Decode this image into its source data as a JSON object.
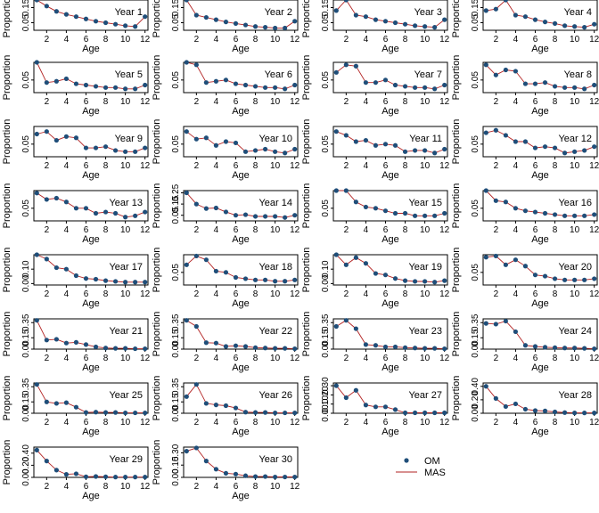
{
  "chart_data": {
    "type": "line",
    "layout": "small-multiples",
    "xlabel": "Age",
    "ylabel": "Proportion",
    "xticks": [
      2,
      4,
      6,
      8,
      10,
      12
    ],
    "xlim": [
      0.7,
      12.3
    ],
    "legend": {
      "placement": "bottom-right",
      "entries": [
        {
          "label": "OM",
          "style": "points",
          "color": "#1f4e79"
        },
        {
          "label": "MAS",
          "style": "line",
          "color": "#b22222"
        }
      ]
    },
    "colors": {
      "points": "#1f4e79",
      "line": "#b22222"
    },
    "panels": [
      {
        "title": "Year 1",
        "yticks": [
          0.05,
          0.15
        ],
        "ylim": [
          0.0,
          0.2
        ],
        "om": [
          0.2,
          0.16,
          0.125,
          0.105,
          0.09,
          0.075,
          0.06,
          0.05,
          0.04,
          0.03,
          0.025,
          0.09
        ],
        "mas": [
          0.2,
          0.16,
          0.125,
          0.105,
          0.09,
          0.075,
          0.06,
          0.05,
          0.04,
          0.03,
          0.025,
          0.09
        ]
      },
      {
        "title": "Year 2",
        "yticks": [
          0.05,
          0.15
        ],
        "ylim": [
          0.0,
          0.2
        ],
        "om": [
          0.2,
          0.1,
          0.085,
          0.07,
          0.055,
          0.045,
          0.035,
          0.025,
          0.02,
          0.015,
          0.015,
          0.06
        ],
        "mas": [
          0.2,
          0.1,
          0.085,
          0.07,
          0.055,
          0.045,
          0.035,
          0.025,
          0.02,
          0.015,
          0.015,
          0.06
        ]
      },
      {
        "title": "Year 3",
        "yticks": [
          0.05,
          0.15
        ],
        "ylim": [
          0.0,
          0.2
        ],
        "om": [
          0.13,
          0.2,
          0.1,
          0.09,
          0.07,
          0.06,
          0.05,
          0.04,
          0.03,
          0.025,
          0.02,
          0.07
        ],
        "mas": [
          0.13,
          0.2,
          0.1,
          0.09,
          0.07,
          0.06,
          0.05,
          0.04,
          0.03,
          0.025,
          0.02,
          0.07
        ]
      },
      {
        "title": "Year 4",
        "yticks": [
          0.05,
          0.15
        ],
        "ylim": [
          0.0,
          0.2
        ],
        "om": [
          0.13,
          0.14,
          0.2,
          0.1,
          0.09,
          0.07,
          0.055,
          0.045,
          0.03,
          0.025,
          0.02,
          0.04
        ],
        "mas": [
          0.13,
          0.14,
          0.2,
          0.1,
          0.09,
          0.07,
          0.055,
          0.045,
          0.03,
          0.025,
          0.02,
          0.04
        ]
      },
      {
        "title": "Year 5",
        "yticks": [
          0.05
        ],
        "ylim": [
          0.0,
          0.12
        ],
        "om": [
          0.12,
          0.04,
          0.045,
          0.055,
          0.035,
          0.03,
          0.025,
          0.02,
          0.02,
          0.015,
          0.015,
          0.03
        ],
        "mas": [
          0.12,
          0.04,
          0.045,
          0.055,
          0.035,
          0.03,
          0.025,
          0.02,
          0.02,
          0.015,
          0.015,
          0.03
        ]
      },
      {
        "title": "Year 6",
        "yticks": [
          0.05
        ],
        "ylim": [
          0.0,
          0.12
        ],
        "om": [
          0.12,
          0.11,
          0.04,
          0.045,
          0.05,
          0.035,
          0.03,
          0.025,
          0.02,
          0.02,
          0.015,
          0.03
        ],
        "mas": [
          0.12,
          0.11,
          0.04,
          0.045,
          0.05,
          0.035,
          0.03,
          0.025,
          0.02,
          0.02,
          0.015,
          0.03
        ]
      },
      {
        "title": "Year 7",
        "yticks": [
          0.05
        ],
        "ylim": [
          0.0,
          0.12
        ],
        "om": [
          0.08,
          0.11,
          0.105,
          0.04,
          0.04,
          0.05,
          0.03,
          0.025,
          0.02,
          0.02,
          0.015,
          0.03
        ],
        "mas": [
          0.08,
          0.11,
          0.105,
          0.04,
          0.04,
          0.05,
          0.03,
          0.025,
          0.02,
          0.02,
          0.015,
          0.03
        ]
      },
      {
        "title": "Year 8",
        "yticks": [
          0.05
        ],
        "ylim": [
          0.0,
          0.12
        ],
        "om": [
          0.11,
          0.07,
          0.09,
          0.085,
          0.035,
          0.035,
          0.04,
          0.025,
          0.02,
          0.02,
          0.015,
          0.03
        ],
        "mas": [
          0.11,
          0.07,
          0.09,
          0.085,
          0.035,
          0.035,
          0.04,
          0.025,
          0.02,
          0.02,
          0.015,
          0.03
        ]
      },
      {
        "title": "Year 9",
        "yticks": [
          0.05
        ],
        "ylim": [
          0.0,
          0.12
        ],
        "om": [
          0.09,
          0.1,
          0.065,
          0.08,
          0.075,
          0.035,
          0.035,
          0.04,
          0.025,
          0.02,
          0.02,
          0.035
        ],
        "mas": [
          0.09,
          0.1,
          0.065,
          0.08,
          0.075,
          0.035,
          0.035,
          0.04,
          0.025,
          0.02,
          0.02,
          0.035
        ]
      },
      {
        "title": "Year 10",
        "yticks": [
          0.05
        ],
        "ylim": [
          0.0,
          0.12
        ],
        "om": [
          0.1,
          0.07,
          0.075,
          0.045,
          0.06,
          0.055,
          0.02,
          0.025,
          0.03,
          0.02,
          0.015,
          0.03
        ],
        "mas": [
          0.1,
          0.07,
          0.075,
          0.045,
          0.06,
          0.055,
          0.02,
          0.025,
          0.03,
          0.02,
          0.015,
          0.03
        ]
      },
      {
        "title": "Year 11",
        "yticks": [
          0.05
        ],
        "ylim": [
          0.0,
          0.12
        ],
        "om": [
          0.1,
          0.085,
          0.06,
          0.065,
          0.045,
          0.05,
          0.045,
          0.02,
          0.025,
          0.025,
          0.015,
          0.03
        ],
        "mas": [
          0.1,
          0.085,
          0.06,
          0.065,
          0.045,
          0.05,
          0.045,
          0.02,
          0.025,
          0.025,
          0.015,
          0.03
        ]
      },
      {
        "title": "Year 12",
        "yticks": [
          0.05
        ],
        "ylim": [
          0.0,
          0.12
        ],
        "om": [
          0.095,
          0.105,
          0.085,
          0.06,
          0.06,
          0.035,
          0.04,
          0.035,
          0.015,
          0.02,
          0.025,
          0.04
        ],
        "mas": [
          0.095,
          0.105,
          0.085,
          0.06,
          0.06,
          0.035,
          0.04,
          0.035,
          0.015,
          0.02,
          0.025,
          0.04
        ]
      },
      {
        "title": "Year 13",
        "yticks": [
          0.05
        ],
        "ylim": [
          0.0,
          0.12
        ],
        "om": [
          0.11,
          0.085,
          0.09,
          0.075,
          0.05,
          0.05,
          0.03,
          0.035,
          0.03,
          0.015,
          0.02,
          0.035
        ],
        "mas": [
          0.11,
          0.085,
          0.09,
          0.075,
          0.05,
          0.05,
          0.03,
          0.035,
          0.03,
          0.015,
          0.02,
          0.035
        ]
      },
      {
        "title": "Year 14",
        "yticks": [
          0.05,
          0.15,
          0.25
        ],
        "ylim": [
          0.0,
          0.27
        ],
        "om": [
          0.25,
          0.15,
          0.11,
          0.115,
          0.08,
          0.05,
          0.055,
          0.04,
          0.04,
          0.04,
          0.03,
          0.05
        ],
        "mas": [
          0.25,
          0.15,
          0.11,
          0.115,
          0.08,
          0.05,
          0.055,
          0.04,
          0.04,
          0.04,
          0.03,
          0.05
        ]
      },
      {
        "title": "Year 15",
        "yticks": [
          0.05
        ],
        "ylim": [
          0.0,
          0.12
        ],
        "om": [
          0.12,
          0.12,
          0.075,
          0.055,
          0.05,
          0.04,
          0.03,
          0.03,
          0.02,
          0.02,
          0.02,
          0.03
        ],
        "mas": [
          0.12,
          0.12,
          0.075,
          0.055,
          0.05,
          0.04,
          0.03,
          0.03,
          0.02,
          0.02,
          0.02,
          0.03
        ]
      },
      {
        "title": "Year 16",
        "yticks": [
          0.05
        ],
        "ylim": [
          0.0,
          0.12
        ],
        "om": [
          0.12,
          0.08,
          0.075,
          0.05,
          0.04,
          0.035,
          0.03,
          0.025,
          0.02,
          0.02,
          0.02,
          0.025
        ],
        "mas": [
          0.12,
          0.08,
          0.075,
          0.05,
          0.04,
          0.035,
          0.03,
          0.025,
          0.02,
          0.02,
          0.02,
          0.025
        ]
      },
      {
        "title": "Year 17",
        "yticks": [
          0.0,
          0.1
        ],
        "ylim": [
          -0.01,
          0.2
        ],
        "om": [
          0.2,
          0.17,
          0.11,
          0.1,
          0.055,
          0.035,
          0.03,
          0.02,
          0.015,
          0.01,
          0.01,
          0.01
        ],
        "mas": [
          0.2,
          0.17,
          0.11,
          0.1,
          0.055,
          0.035,
          0.03,
          0.02,
          0.015,
          0.01,
          0.01,
          0.01
        ]
      },
      {
        "title": "Year 18",
        "yticks": [
          0.05
        ],
        "ylim": [
          0.0,
          0.12
        ],
        "om": [
          0.08,
          0.115,
          0.1,
          0.055,
          0.05,
          0.03,
          0.025,
          0.02,
          0.02,
          0.015,
          0.015,
          0.02
        ],
        "mas": [
          0.08,
          0.115,
          0.1,
          0.055,
          0.05,
          0.03,
          0.025,
          0.02,
          0.02,
          0.015,
          0.015,
          0.02
        ]
      },
      {
        "title": "Year 19",
        "yticks": [
          0.0,
          0.1
        ],
        "ylim": [
          -0.01,
          0.2
        ],
        "om": [
          0.2,
          0.13,
          0.18,
          0.14,
          0.07,
          0.06,
          0.035,
          0.02,
          0.015,
          0.015,
          0.01,
          0.02
        ],
        "mas": [
          0.2,
          0.13,
          0.18,
          0.14,
          0.07,
          0.06,
          0.035,
          0.02,
          0.015,
          0.015,
          0.01,
          0.02
        ]
      },
      {
        "title": "Year 20",
        "yticks": [
          0.05
        ],
        "ylim": [
          0.0,
          0.12
        ],
        "om": [
          0.11,
          0.115,
          0.08,
          0.1,
          0.075,
          0.04,
          0.035,
          0.025,
          0.02,
          0.02,
          0.02,
          0.025
        ],
        "mas": [
          0.11,
          0.115,
          0.08,
          0.1,
          0.075,
          0.04,
          0.035,
          0.025,
          0.02,
          0.02,
          0.02,
          0.025
        ]
      },
      {
        "title": "Year 21",
        "yticks": [
          0.0,
          0.15,
          0.35
        ],
        "ylim": [
          0.0,
          0.4
        ],
        "om": [
          0.38,
          0.12,
          0.13,
          0.08,
          0.09,
          0.06,
          0.03,
          0.015,
          0.01,
          0.01,
          0.005,
          0.005
        ],
        "mas": [
          0.38,
          0.12,
          0.13,
          0.08,
          0.09,
          0.06,
          0.03,
          0.015,
          0.01,
          0.01,
          0.005,
          0.005
        ]
      },
      {
        "title": "Year 22",
        "yticks": [
          0.0,
          0.15,
          0.35
        ],
        "ylim": [
          0.0,
          0.4
        ],
        "om": [
          0.38,
          0.3,
          0.085,
          0.08,
          0.035,
          0.045,
          0.035,
          0.02,
          0.015,
          0.01,
          0.01,
          0.005
        ],
        "mas": [
          0.38,
          0.3,
          0.085,
          0.08,
          0.035,
          0.045,
          0.035,
          0.02,
          0.015,
          0.01,
          0.01,
          0.005
        ]
      },
      {
        "title": "Year 23",
        "yticks": [
          0.0,
          0.15,
          0.35
        ],
        "ylim": [
          0.0,
          0.4
        ],
        "om": [
          0.3,
          0.38,
          0.27,
          0.06,
          0.05,
          0.03,
          0.03,
          0.02,
          0.015,
          0.01,
          0.01,
          0.005
        ],
        "mas": [
          0.3,
          0.38,
          0.27,
          0.06,
          0.05,
          0.03,
          0.03,
          0.02,
          0.015,
          0.01,
          0.01,
          0.005
        ]
      },
      {
        "title": "Year 24",
        "yticks": [
          0.0,
          0.15,
          0.35
        ],
        "ylim": [
          0.0,
          0.4
        ],
        "om": [
          0.34,
          0.33,
          0.37,
          0.23,
          0.05,
          0.035,
          0.025,
          0.02,
          0.015,
          0.015,
          0.01,
          0.005
        ],
        "mas": [
          0.34,
          0.33,
          0.37,
          0.23,
          0.05,
          0.035,
          0.025,
          0.02,
          0.015,
          0.015,
          0.01,
          0.005
        ]
      },
      {
        "title": "Year 25",
        "yticks": [
          0.0,
          0.15,
          0.35
        ],
        "ylim": [
          0.0,
          0.4
        ],
        "om": [
          0.38,
          0.15,
          0.13,
          0.14,
          0.08,
          0.01,
          0.015,
          0.01,
          0.01,
          0.005,
          0.005,
          0.005
        ],
        "mas": [
          0.38,
          0.15,
          0.13,
          0.14,
          0.08,
          0.01,
          0.015,
          0.01,
          0.01,
          0.005,
          0.005,
          0.005
        ]
      },
      {
        "title": "Year 26",
        "yticks": [
          0.0,
          0.15,
          0.35
        ],
        "ylim": [
          0.0,
          0.4
        ],
        "om": [
          0.22,
          0.38,
          0.13,
          0.11,
          0.1,
          0.07,
          0.015,
          0.01,
          0.01,
          0.005,
          0.005,
          0.005
        ],
        "mas": [
          0.22,
          0.38,
          0.13,
          0.11,
          0.1,
          0.07,
          0.015,
          0.01,
          0.01,
          0.005,
          0.005,
          0.005
        ]
      },
      {
        "title": "Year 27",
        "yticks": [
          0.0,
          0.1,
          0.2,
          0.3
        ],
        "ylim": [
          0.0,
          0.33
        ],
        "om": [
          0.3,
          0.17,
          0.25,
          0.09,
          0.07,
          0.07,
          0.04,
          0.005,
          0.005,
          0.005,
          0.005,
          0.005
        ],
        "mas": [
          0.3,
          0.17,
          0.25,
          0.09,
          0.07,
          0.07,
          0.04,
          0.005,
          0.005,
          0.005,
          0.005,
          0.005
        ]
      },
      {
        "title": "Year 28",
        "yticks": [
          0.0,
          0.2,
          0.4
        ],
        "ylim": [
          0.0,
          0.45
        ],
        "om": [
          0.4,
          0.22,
          0.1,
          0.14,
          0.06,
          0.04,
          0.035,
          0.02,
          0.01,
          0.005,
          0.005,
          0.005
        ],
        "mas": [
          0.4,
          0.22,
          0.1,
          0.14,
          0.06,
          0.04,
          0.035,
          0.02,
          0.01,
          0.005,
          0.005,
          0.005
        ]
      },
      {
        "title": "Year 29",
        "yticks": [
          0.0,
          0.2,
          0.4
        ],
        "ylim": [
          0.0,
          0.5
        ],
        "om": [
          0.45,
          0.27,
          0.12,
          0.05,
          0.06,
          0.01,
          0.015,
          0.01,
          0.005,
          0.005,
          0.005,
          0.005
        ],
        "mas": [
          0.45,
          0.27,
          0.12,
          0.05,
          0.06,
          0.01,
          0.015,
          0.01,
          0.005,
          0.005,
          0.005,
          0.005
        ]
      },
      {
        "title": "Year 30",
        "yticks": [
          0.0,
          0.15,
          0.3
        ],
        "ylim": [
          0.0,
          0.37
        ],
        "om": [
          0.32,
          0.36,
          0.2,
          0.1,
          0.05,
          0.04,
          0.02,
          0.01,
          0.01,
          0.005,
          0.005,
          0.005
        ],
        "mas": [
          0.32,
          0.36,
          0.2,
          0.1,
          0.05,
          0.04,
          0.02,
          0.01,
          0.01,
          0.005,
          0.005,
          0.005
        ]
      }
    ]
  }
}
